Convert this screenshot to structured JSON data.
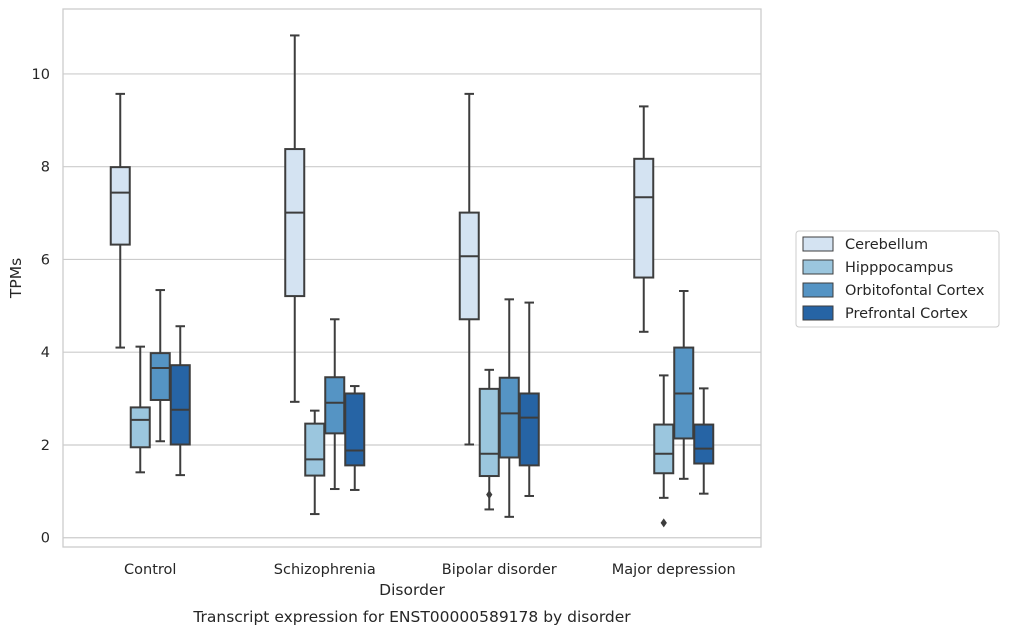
{
  "caption": "Transcript expression for ENST00000589178 by disorder",
  "chart_data": {
    "type": "boxplot",
    "title": "",
    "xlabel": "Disorder",
    "ylabel": "TPMs",
    "ylim": [
      -0.2,
      11.4
    ],
    "yticks": [
      0,
      2,
      4,
      6,
      8,
      10
    ],
    "grid": "horizontal",
    "legend_placement": "center-right outside",
    "categories": [
      "Control",
      "Schizophrenia",
      "Bipolar disorder",
      "Major depression"
    ],
    "series": [
      {
        "name": "Cerebellum",
        "color": "#d4e3f2",
        "boxes": [
          {
            "whislo": 4.1,
            "q1": 6.32,
            "med": 7.44,
            "q3": 7.99,
            "whishi": 9.57,
            "fliers": []
          },
          {
            "whislo": 2.93,
            "q1": 5.21,
            "med": 7.01,
            "q3": 8.38,
            "whishi": 10.83,
            "fliers": []
          },
          {
            "whislo": 2.01,
            "q1": 4.71,
            "med": 6.07,
            "q3": 7.01,
            "whishi": 9.57,
            "fliers": []
          },
          {
            "whislo": 4.44,
            "q1": 5.61,
            "med": 7.34,
            "q3": 8.17,
            "whishi": 9.3,
            "fliers": []
          }
        ]
      },
      {
        "name": "Hipppocampus",
        "color": "#9bc6de",
        "boxes": [
          {
            "whislo": 1.41,
            "q1": 1.95,
            "med": 2.54,
            "q3": 2.81,
            "whishi": 4.12,
            "fliers": []
          },
          {
            "whislo": 0.51,
            "q1": 1.34,
            "med": 1.69,
            "q3": 2.46,
            "whishi": 2.74,
            "fliers": []
          },
          {
            "whislo": 0.61,
            "q1": 1.33,
            "med": 1.81,
            "q3": 3.21,
            "whishi": 3.62,
            "fliers": [
              0.93
            ]
          },
          {
            "whislo": 0.86,
            "q1": 1.39,
            "med": 1.81,
            "q3": 2.44,
            "whishi": 3.5,
            "fliers": [
              0.32
            ]
          }
        ]
      },
      {
        "name": "Orbitofontal Cortex",
        "color": "#5594c4",
        "boxes": [
          {
            "whislo": 2.08,
            "q1": 2.97,
            "med": 3.66,
            "q3": 3.98,
            "whishi": 5.34,
            "fliers": []
          },
          {
            "whislo": 1.05,
            "q1": 2.25,
            "med": 2.91,
            "q3": 3.46,
            "whishi": 4.71,
            "fliers": []
          },
          {
            "whislo": 0.45,
            "q1": 1.73,
            "med": 2.68,
            "q3": 3.45,
            "whishi": 5.14,
            "fliers": []
          },
          {
            "whislo": 1.27,
            "q1": 2.14,
            "med": 3.11,
            "q3": 4.1,
            "whishi": 5.32,
            "fliers": []
          }
        ]
      },
      {
        "name": "Prefrontal Cortex",
        "color": "#2664a5",
        "boxes": [
          {
            "whislo": 1.35,
            "q1": 2.01,
            "med": 2.76,
            "q3": 3.72,
            "whishi": 4.56,
            "fliers": []
          },
          {
            "whislo": 1.03,
            "q1": 1.56,
            "med": 1.88,
            "q3": 3.11,
            "whishi": 3.27,
            "fliers": []
          },
          {
            "whislo": 0.9,
            "q1": 1.56,
            "med": 2.59,
            "q3": 3.11,
            "whishi": 5.07,
            "fliers": []
          },
          {
            "whislo": 0.95,
            "q1": 1.6,
            "med": 1.92,
            "q3": 2.44,
            "whishi": 3.22,
            "fliers": []
          }
        ]
      }
    ]
  }
}
